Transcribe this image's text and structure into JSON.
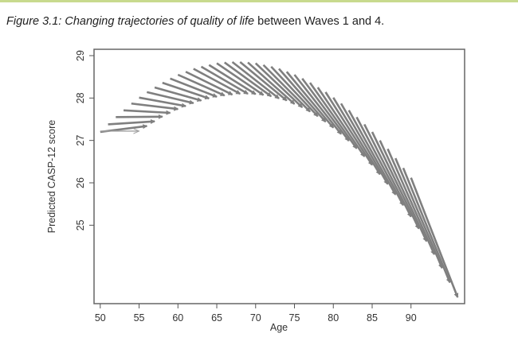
{
  "caption": {
    "prefix_italic": "Figure 3.1: Changing trajectories of quality of life",
    "suffix": " between Waves 1 and 4."
  },
  "colors": {
    "arrow": "#7f7f7f",
    "arrow_light": "#a0a0a0",
    "rule": "#c8da8e"
  },
  "chart_data": {
    "type": "arrow-plot",
    "xlabel": "Age",
    "ylabel": "Predicted CASP-12 score",
    "xlim": [
      49.2,
      96.9
    ],
    "ylim": [
      23.15,
      29.15
    ],
    "xticks": [
      50,
      55,
      60,
      65,
      70,
      75,
      80,
      85,
      90
    ],
    "yticks": [
      25,
      26,
      27,
      28,
      29
    ],
    "grid": false,
    "first_arrow_light": [
      50,
      27.22,
      55,
      27.22
    ],
    "arrows": [
      [
        50,
        27.2,
        56,
        27.34
      ],
      [
        51,
        27.38,
        57,
        27.45
      ],
      [
        52,
        27.55,
        58,
        27.56
      ],
      [
        53,
        27.71,
        59,
        27.65
      ],
      [
        54,
        27.87,
        60,
        27.74
      ],
      [
        55,
        28.01,
        61,
        27.81
      ],
      [
        56,
        28.14,
        62,
        27.88
      ],
      [
        57,
        28.25,
        63,
        27.94
      ],
      [
        58,
        28.36,
        64,
        27.99
      ],
      [
        59,
        28.46,
        65,
        28.03
      ],
      [
        60,
        28.55,
        66,
        28.06
      ],
      [
        61,
        28.62,
        67,
        28.08
      ],
      [
        62,
        28.69,
        68,
        28.1
      ],
      [
        63,
        28.74,
        69,
        28.1
      ],
      [
        64,
        28.78,
        70,
        28.09
      ],
      [
        65,
        28.82,
        71,
        28.07
      ],
      [
        66,
        28.84,
        72,
        28.04
      ],
      [
        67,
        28.85,
        73,
        27.99
      ],
      [
        68,
        28.85,
        74,
        27.94
      ],
      [
        69,
        28.84,
        75,
        27.86
      ],
      [
        70,
        28.82,
        76,
        27.78
      ],
      [
        71,
        28.78,
        77,
        27.68
      ],
      [
        72,
        28.74,
        78,
        27.57
      ],
      [
        73,
        28.69,
        79,
        27.44
      ],
      [
        74,
        28.62,
        80,
        27.3
      ],
      [
        75,
        28.55,
        81,
        27.15
      ],
      [
        76,
        28.46,
        82,
        26.99
      ],
      [
        77,
        28.36,
        83,
        26.81
      ],
      [
        78,
        28.25,
        84,
        26.62
      ],
      [
        79,
        28.14,
        85,
        26.42
      ],
      [
        80,
        28.01,
        86,
        26.2
      ],
      [
        81,
        27.87,
        87,
        25.97
      ],
      [
        82,
        27.71,
        88,
        25.72
      ],
      [
        83,
        27.55,
        89,
        25.47
      ],
      [
        84,
        27.38,
        90,
        25.2
      ],
      [
        85,
        27.2,
        91,
        24.92
      ],
      [
        86,
        27.0,
        92,
        24.62
      ],
      [
        87,
        26.8,
        93,
        24.31
      ],
      [
        88,
        26.58,
        94,
        23.99
      ],
      [
        89,
        26.35,
        95,
        23.65
      ],
      [
        90,
        26.12,
        96,
        23.3
      ]
    ]
  }
}
